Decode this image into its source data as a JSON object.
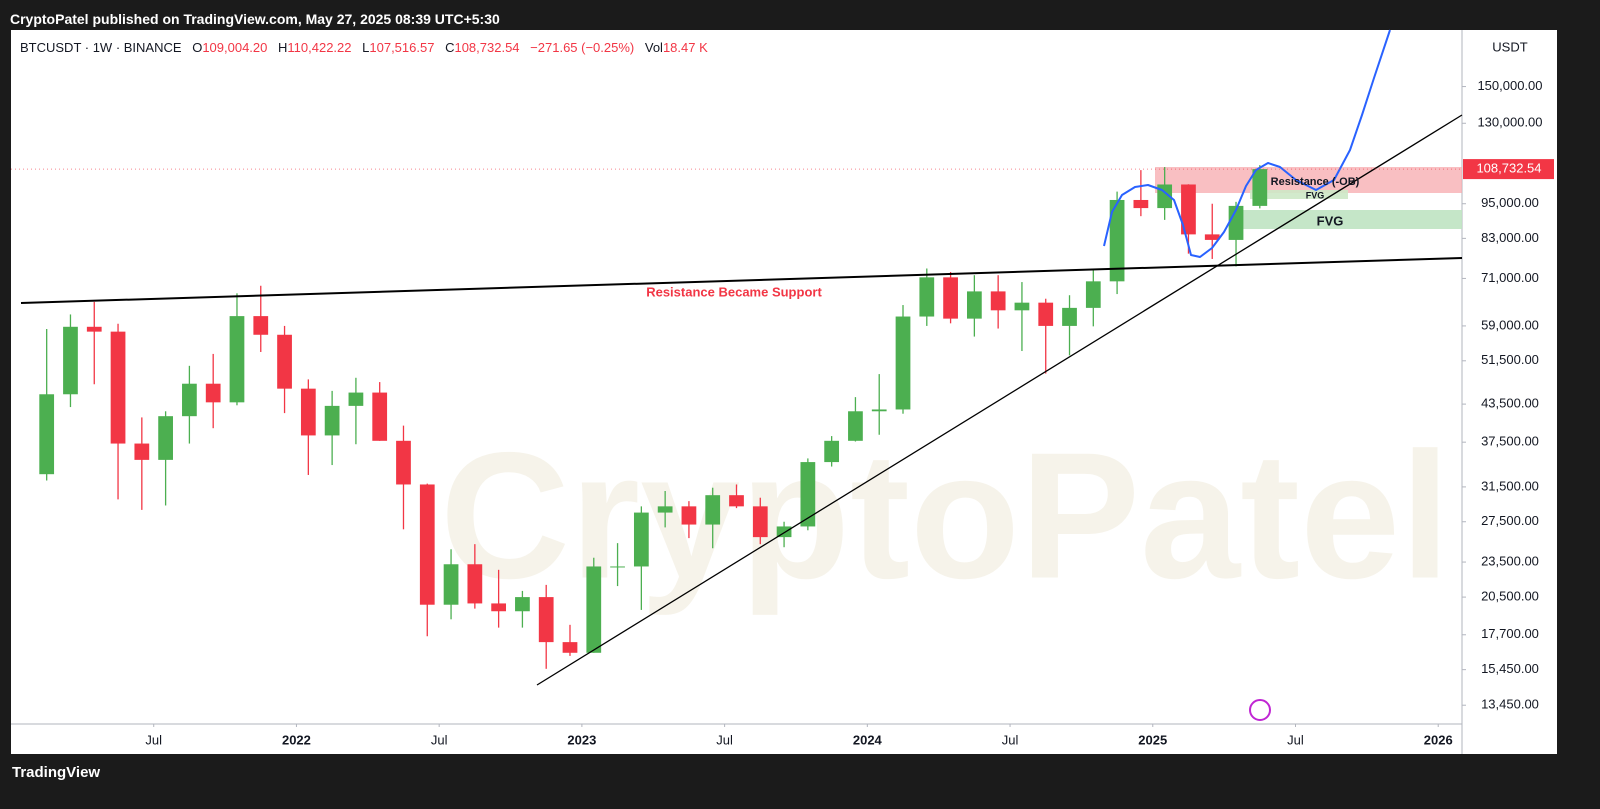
{
  "header": {
    "publisher": "CryptoPatel published on TradingView.com, May 27, 2025 08:39 UTC+5:30"
  },
  "legend": {
    "symbol": "BTCUSDT · 1W · BINANCE",
    "open_label": "O",
    "open": "109,004.20",
    "high_label": "H",
    "high": "110,422.22",
    "low_label": "L",
    "low": "107,516.57",
    "close_label": "C",
    "close": "108,732.54",
    "change": "−271.65 (−0.25%)",
    "volume_label": "Vol",
    "volume": "18.47 K"
  },
  "chart_data": {
    "type": "candlestick",
    "log_scale": true,
    "currency": "USDT",
    "watermark": "CryptoPatel",
    "up_color": "#4caf50",
    "down_color": "#f23645",
    "x": [
      "2021-02",
      "2021-03",
      "2021-04",
      "2021-05",
      "2021-06",
      "2021-07",
      "2021-08",
      "2021-09",
      "2021-10",
      "2021-11",
      "2021-12",
      "2022-01",
      "2022-02",
      "2022-03",
      "2022-04",
      "2022-05",
      "2022-06",
      "2022-07",
      "2022-08",
      "2022-09",
      "2022-10",
      "2022-11",
      "2022-12",
      "2023-01",
      "2023-02",
      "2023-03",
      "2023-04",
      "2023-05",
      "2023-06",
      "2023-07",
      "2023-08",
      "2023-09",
      "2023-10",
      "2023-11",
      "2023-12",
      "2024-01",
      "2024-02",
      "2024-03",
      "2024-04",
      "2024-05",
      "2024-06",
      "2024-07",
      "2024-08",
      "2024-09",
      "2024-10",
      "2024-11",
      "2024-12",
      "2025-01",
      "2025-02",
      "2025-03",
      "2025-04",
      "2025-05"
    ],
    "open": [
      33100,
      45200,
      58800,
      57700,
      37300,
      35000,
      41500,
      47100,
      43800,
      61300,
      57000,
      46200,
      38500,
      43200,
      45500,
      37700,
      31800,
      19900,
      23300,
      20000,
      19400,
      20500,
      17200,
      16500,
      23100,
      23100,
      28500,
      29200,
      27200,
      30500,
      29200,
      25900,
      27000,
      34700,
      37700,
      42300,
      42600,
      61200,
      71300,
      60700,
      67500,
      62700,
      64600,
      59000,
      63300,
      70200,
      96400,
      93400,
      102400,
      84300,
      82500,
      94200
    ],
    "high": [
      58300,
      61700,
      64800,
      59500,
      41300,
      42300,
      50500,
      52900,
      67000,
      69000,
      59000,
      47900,
      45800,
      48200,
      47400,
      40000,
      31900,
      24700,
      25200,
      22800,
      21000,
      21500,
      18400,
      23900,
      25300,
      29200,
      31000,
      29800,
      31400,
      31800,
      30200,
      27500,
      35200,
      38400,
      44700,
      48900,
      64000,
      73800,
      72800,
      71900,
      71900,
      70000,
      65600,
      66500,
      73600,
      99600,
      108300,
      109600,
      102500,
      95000,
      95700,
      110422
    ],
    "low": [
      32300,
      43000,
      47000,
      30000,
      28800,
      29300,
      37300,
      39600,
      43300,
      53300,
      42000,
      33000,
      34300,
      37200,
      37700,
      26700,
      17600,
      18800,
      19600,
      18200,
      18200,
      15500,
      16300,
      16500,
      21400,
      19500,
      26900,
      25800,
      24800,
      29000,
      25200,
      24900,
      26600,
      34100,
      37600,
      38600,
      41900,
      59000,
      59600,
      56600,
      58400,
      53500,
      49000,
      52600,
      58900,
      66800,
      90500,
      89200,
      78200,
      76600,
      74400,
      93300
    ],
    "close": [
      45200,
      58800,
      57700,
      37300,
      35000,
      41500,
      47100,
      43800,
      61300,
      57000,
      46200,
      38500,
      43200,
      45500,
      37700,
      31800,
      19900,
      23300,
      20000,
      19400,
      20500,
      17200,
      16500,
      23100,
      23100,
      28500,
      29200,
      27200,
      30500,
      29200,
      25900,
      27000,
      34700,
      37700,
      42300,
      42600,
      61200,
      71300,
      60700,
      67500,
      62700,
      64600,
      59000,
      63300,
      70200,
      96400,
      93400,
      102400,
      84300,
      82500,
      94200,
      108732
    ],
    "xlim": [
      "2021-01",
      "2026-02"
    ],
    "xticks": [
      {
        "value": "2021-07",
        "label": "Jul"
      },
      {
        "value": "2022-01",
        "label": "2022"
      },
      {
        "value": "2022-07",
        "label": "Jul"
      },
      {
        "value": "2023-01",
        "label": "2023"
      },
      {
        "value": "2023-07",
        "label": "Jul"
      },
      {
        "value": "2024-01",
        "label": "2024"
      },
      {
        "value": "2024-07",
        "label": "Jul"
      },
      {
        "value": "2025-01",
        "label": "2025"
      },
      {
        "value": "2025-07",
        "label": "Jul"
      },
      {
        "value": "2026-01",
        "label": "2026"
      }
    ],
    "ylim": [
      12500,
      187000
    ],
    "yticks": [
      {
        "value": 13450,
        "label": "13,450.00"
      },
      {
        "value": 15450,
        "label": "15,450.00"
      },
      {
        "value": 17700,
        "label": "17,700.00"
      },
      {
        "value": 20500,
        "label": "20,500.00"
      },
      {
        "value": 23500,
        "label": "23,500.00"
      },
      {
        "value": 27500,
        "label": "27,500.00"
      },
      {
        "value": 31500,
        "label": "31,500.00"
      },
      {
        "value": 37500,
        "label": "37,500.00"
      },
      {
        "value": 43500,
        "label": "43,500.00"
      },
      {
        "value": 51500,
        "label": "51,500.00"
      },
      {
        "value": 59000,
        "label": "59,000.00"
      },
      {
        "value": 71000,
        "label": "71,000.00"
      },
      {
        "value": 83000,
        "label": "83,000.00"
      },
      {
        "value": 95000,
        "label": "95,000.00"
      },
      {
        "value": 130000,
        "label": "130,000.00"
      },
      {
        "value": 150000,
        "label": "150,000.00"
      }
    ],
    "last_price": {
      "value": 108732.54,
      "label": "108,732.54"
    },
    "annotations": {
      "support": "Resistance Became Support",
      "resistance_zone": "Resistance (-OB)",
      "fvg_small": "FVG",
      "fvg": "FVG"
    }
  },
  "footer": {
    "brand": "TradingView"
  }
}
